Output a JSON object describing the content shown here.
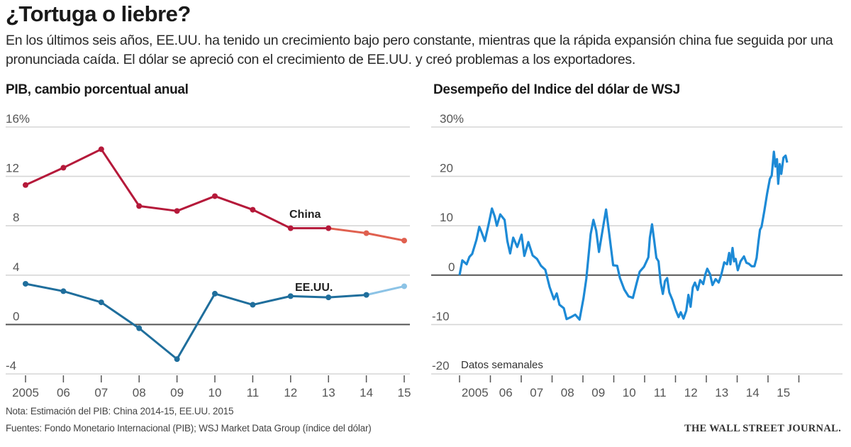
{
  "header": {
    "title": "¿Tortuga o liebre?",
    "subtitle": "En los últimos seis años, EE.UU. ha tenido un crecimiento bajo pero constante, mientras que la rápida expansión china fue seguida por una pronunciada caída. El dólar se apreció con el crecimiento de EE.UU. y creó problemas a los exportadores."
  },
  "footer": {
    "note": "Nota: Estimación del PIB: China 2014-15, EE.UU. 2015",
    "sources": "Fuentes: Fondo Monetario Internacional (PIB); WSJ Market Data Group (índice del dólar)",
    "publisher": "THE WALL STREET JOURNAL."
  },
  "colors": {
    "china": "#b5193a",
    "china_estimate": "#e0604f",
    "us": "#1f6e9c",
    "us_estimate": "#8cc3e6",
    "dollar": "#1d8ad6",
    "grid": "#d6d6d6",
    "zero": "#555555"
  },
  "chart_data": [
    {
      "type": "line",
      "title": "PIB, cambio porcentual anual",
      "xlabel": "",
      "ylabel": "",
      "x": [
        2005,
        2006,
        2007,
        2008,
        2009,
        2010,
        2011,
        2012,
        2013,
        2014,
        2015
      ],
      "x_tick_labels": [
        "2005",
        "06",
        "07",
        "08",
        "09",
        "10",
        "11",
        "12",
        "13",
        "14",
        "15"
      ],
      "y_ticks": [
        16,
        12,
        8,
        4,
        0,
        -4
      ],
      "y_tick_labels": [
        "16%",
        "12",
        "8",
        "4",
        "0",
        "-4"
      ],
      "ylim": [
        -4,
        16
      ],
      "grid": true,
      "series": [
        {
          "name": "China",
          "values": [
            11.3,
            12.7,
            14.2,
            9.6,
            9.2,
            10.4,
            9.3,
            7.8,
            7.8,
            7.4,
            6.8
          ],
          "estimate_from": 2013
        },
        {
          "name": "EE.UU.",
          "values": [
            3.3,
            2.7,
            1.8,
            -0.3,
            -2.8,
            2.5,
            1.6,
            2.3,
            2.2,
            2.4,
            3.1
          ],
          "estimate_from": 2014
        }
      ]
    },
    {
      "type": "line",
      "title": "Desempeño del Indice del dólar de WSJ",
      "xlabel": "",
      "ylabel": "",
      "annotation": "Datos semanales",
      "x_tick_labels": [
        "2005",
        "06",
        "07",
        "08",
        "09",
        "10",
        "11",
        "12",
        "13",
        "14",
        "15"
      ],
      "xlim": [
        2005,
        2016.2
      ],
      "y_ticks": [
        30,
        20,
        10,
        0,
        -10,
        -20
      ],
      "y_tick_labels": [
        "30%",
        "20",
        "10",
        "0",
        "-10",
        "-20"
      ],
      "ylim": [
        -20,
        30
      ],
      "grid": true,
      "series": [
        {
          "name": "Índice del dólar de WSJ",
          "points": [
            [
              2005.0,
              0.0
            ],
            [
              2005.09,
              3.0
            ],
            [
              2005.23,
              2.2
            ],
            [
              2005.32,
              3.7
            ],
            [
              2005.41,
              4.3
            ],
            [
              2005.55,
              7.2
            ],
            [
              2005.64,
              9.8
            ],
            [
              2005.72,
              8.6
            ],
            [
              2005.82,
              6.9
            ],
            [
              2005.95,
              10.5
            ],
            [
              2006.05,
              13.5
            ],
            [
              2006.14,
              11.9
            ],
            [
              2006.21,
              10.0
            ],
            [
              2006.32,
              12.3
            ],
            [
              2006.46,
              11.2
            ],
            [
              2006.55,
              6.9
            ],
            [
              2006.64,
              4.4
            ],
            [
              2006.74,
              7.6
            ],
            [
              2006.87,
              5.7
            ],
            [
              2007.01,
              8.2
            ],
            [
              2007.1,
              3.9
            ],
            [
              2007.23,
              6.7
            ],
            [
              2007.37,
              4.0
            ],
            [
              2007.51,
              3.3
            ],
            [
              2007.64,
              1.9
            ],
            [
              2007.78,
              1.1
            ],
            [
              2007.92,
              -2.4
            ],
            [
              2008.06,
              -4.9
            ],
            [
              2008.15,
              -3.7
            ],
            [
              2008.24,
              -6.0
            ],
            [
              2008.38,
              -6.7
            ],
            [
              2008.47,
              -8.9
            ],
            [
              2008.61,
              -8.5
            ],
            [
              2008.75,
              -8.0
            ],
            [
              2008.89,
              -9.0
            ],
            [
              2009.02,
              -4.6
            ],
            [
              2009.11,
              -0.7
            ],
            [
              2009.25,
              8.3
            ],
            [
              2009.34,
              11.2
            ],
            [
              2009.43,
              9.0
            ],
            [
              2009.52,
              4.7
            ],
            [
              2009.66,
              10.0
            ],
            [
              2009.75,
              13.3
            ],
            [
              2009.84,
              9.0
            ],
            [
              2009.98,
              2.0
            ],
            [
              2010.11,
              1.9
            ],
            [
              2010.2,
              -0.6
            ],
            [
              2010.34,
              -2.9
            ],
            [
              2010.48,
              -4.3
            ],
            [
              2010.62,
              -4.6
            ],
            [
              2010.75,
              -1.4
            ],
            [
              2010.84,
              0.7
            ],
            [
              2010.98,
              1.7
            ],
            [
              2011.12,
              3.6
            ],
            [
              2011.17,
              7.6
            ],
            [
              2011.24,
              10.3
            ],
            [
              2011.31,
              7.0
            ],
            [
              2011.38,
              3.5
            ],
            [
              2011.45,
              2.8
            ],
            [
              2011.52,
              -1.5
            ],
            [
              2011.59,
              -3.8
            ],
            [
              2011.66,
              -1.2
            ],
            [
              2011.73,
              -0.6
            ],
            [
              2011.8,
              -3.5
            ],
            [
              2011.9,
              -5.0
            ],
            [
              2012.0,
              -7.0
            ],
            [
              2012.1,
              -8.5
            ],
            [
              2012.17,
              -7.5
            ],
            [
              2012.26,
              -8.8
            ],
            [
              2012.35,
              -7.2
            ],
            [
              2012.42,
              -4.0
            ],
            [
              2012.49,
              -6.4
            ],
            [
              2012.56,
              -2.5
            ],
            [
              2012.63,
              -1.5
            ],
            [
              2012.72,
              -3.0
            ],
            [
              2012.8,
              -1.0
            ],
            [
              2012.9,
              -1.8
            ],
            [
              2012.97,
              0.2
            ],
            [
              2013.03,
              1.3
            ],
            [
              2013.12,
              0.2
            ],
            [
              2013.2,
              -2.0
            ],
            [
              2013.3,
              -0.8
            ],
            [
              2013.4,
              -1.5
            ],
            [
              2013.49,
              0.2
            ],
            [
              2013.58,
              2.6
            ],
            [
              2013.67,
              2.2
            ],
            [
              2013.74,
              4.5
            ],
            [
              2013.78,
              2.2
            ],
            [
              2013.85,
              5.5
            ],
            [
              2013.9,
              2.8
            ],
            [
              2013.95,
              3.3
            ],
            [
              2014.02,
              1.0
            ],
            [
              2014.11,
              2.8
            ],
            [
              2014.22,
              3.8
            ],
            [
              2014.3,
              2.5
            ],
            [
              2014.38,
              2.3
            ],
            [
              2014.47,
              1.8
            ],
            [
              2014.56,
              1.8
            ],
            [
              2014.63,
              3.5
            ],
            [
              2014.69,
              6.8
            ],
            [
              2014.74,
              9.2
            ],
            [
              2014.79,
              9.8
            ],
            [
              2014.88,
              13.0
            ],
            [
              2014.97,
              16.5
            ],
            [
              2015.06,
              19.5
            ],
            [
              2015.12,
              20.2
            ],
            [
              2015.19,
              25.0
            ],
            [
              2015.24,
              22.0
            ],
            [
              2015.29,
              23.5
            ],
            [
              2015.33,
              18.5
            ],
            [
              2015.38,
              22.5
            ],
            [
              2015.43,
              20.5
            ],
            [
              2015.5,
              23.8
            ],
            [
              2015.57,
              24.2
            ],
            [
              2015.62,
              22.8
            ]
          ]
        }
      ]
    }
  ]
}
